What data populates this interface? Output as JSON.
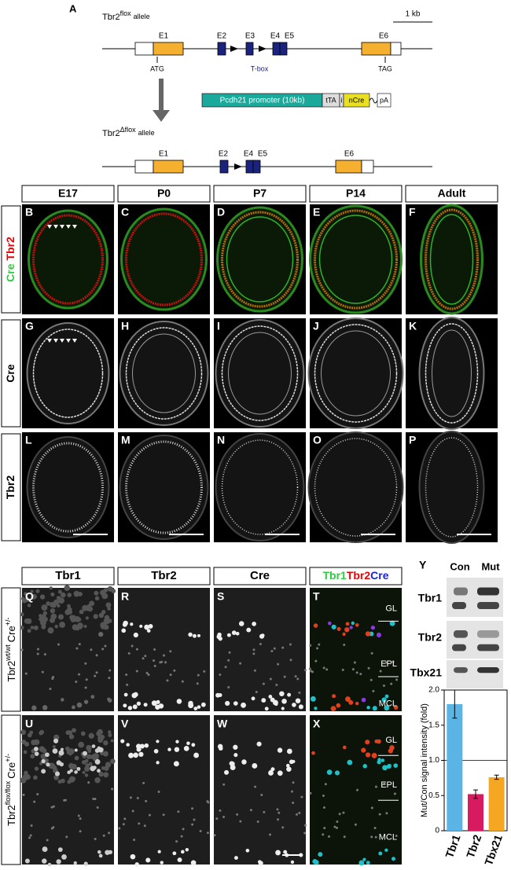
{
  "panel_a": {
    "label": "A",
    "scale": "1 kb",
    "allele_1": {
      "gene": "Tbr2",
      "sup": "flox",
      "suffix": "allele"
    },
    "allele_1_exons": [
      "E1",
      "E2",
      "E3",
      "E4",
      "E5",
      "E6"
    ],
    "start": "ATG",
    "stop": "TAG",
    "domain": "T-box",
    "construct": [
      "Pcdh21 promoter (10kb)",
      "tTA",
      "i",
      "nCre",
      "pA"
    ],
    "allele_2": {
      "gene": "Tbr2",
      "sup": "Δflox",
      "suffix": "allele"
    },
    "allele_2_exons": [
      "E1",
      "E2",
      "E4",
      "E5",
      "E6"
    ]
  },
  "grid": {
    "columns": [
      "E17",
      "P0",
      "P7",
      "P14",
      "Adult"
    ],
    "row_labels": [
      [
        "Cre",
        "Tbr2"
      ],
      [
        "Cre"
      ],
      [
        "Tbr2"
      ]
    ],
    "panels": [
      [
        "B",
        "C",
        "D",
        "E",
        "F"
      ],
      [
        "G",
        "H",
        "I",
        "J",
        "K"
      ],
      [
        "L",
        "M",
        "N",
        "O",
        "P"
      ]
    ]
  },
  "sections": {
    "columns": [
      "Tbr1",
      "Tbr2",
      "Cre"
    ],
    "merge_header": [
      "Tbr1",
      "Tbr2",
      "Cre"
    ],
    "row_labels": [
      {
        "gene": "Tbr2",
        "sup": "wt/wt",
        "cre": "Cre",
        "cre_sup": "+/-"
      },
      {
        "gene": "Tbr2",
        "sup": "flox/flox",
        "cre": "Cre",
        "cre_sup": "+/-"
      }
    ],
    "panels": [
      [
        "Q",
        "R",
        "S",
        "T"
      ],
      [
        "U",
        "V",
        "W",
        "X"
      ]
    ],
    "layers": [
      "GL",
      "EPL",
      "MCL"
    ]
  },
  "panel_y": {
    "label": "Y",
    "lanes": [
      "Con",
      "Mut"
    ],
    "blots": [
      "Tbr1",
      "Tbr2",
      "Tbx21"
    ]
  },
  "chart_data": {
    "type": "bar",
    "ylabel": "Mut/Con signal intensity (fold)",
    "categories": [
      "Tbr1",
      "Tbr2",
      "Tbx21"
    ],
    "values": [
      1.8,
      0.52,
      0.76
    ],
    "errors": [
      0.2,
      0.06,
      0.03
    ],
    "colors": [
      "#5ab4e5",
      "#d81b60",
      "#f5a623"
    ],
    "ylim": [
      0,
      2
    ],
    "yticks": [
      0,
      0.5,
      {
        "value": 1,
        "label": "1.0"
      },
      1.5,
      {
        "value": 2,
        "label": "2.0"
      }
    ],
    "reference_line": 1
  }
}
